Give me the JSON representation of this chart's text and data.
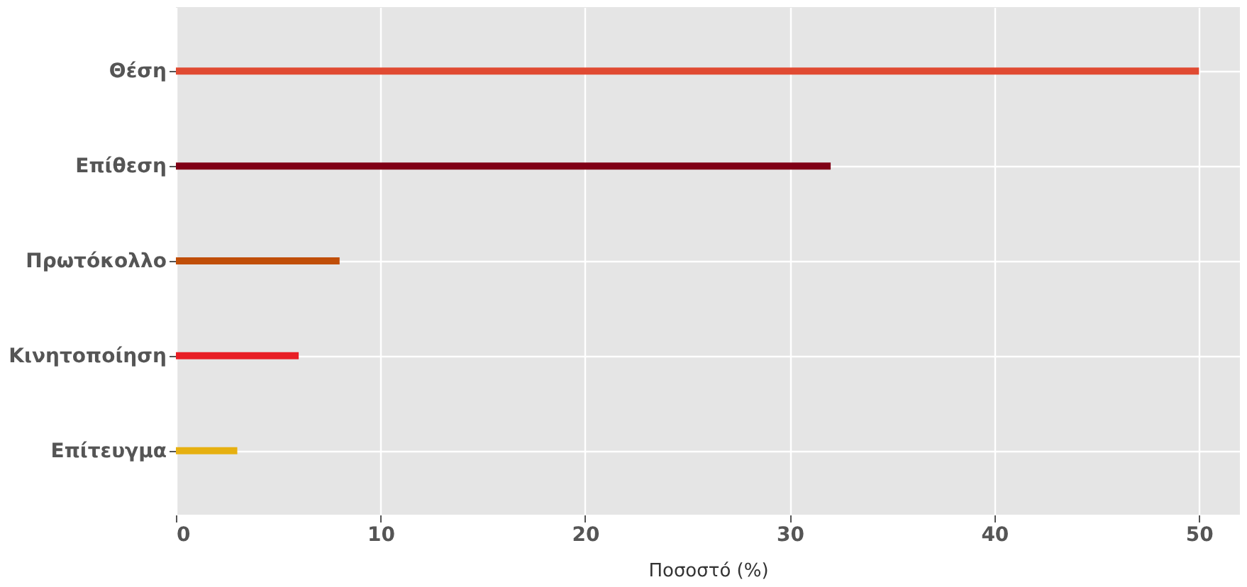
{
  "chart_data": {
    "type": "bar",
    "orientation": "horizontal",
    "categories": [
      "Θέση",
      "Επίθεση",
      "Πρωτόκολλο",
      "Κινητοποίηση",
      "Επίτευγμα"
    ],
    "values": [
      50,
      32,
      8,
      6,
      3
    ],
    "colors": [
      "#e04a32",
      "#800016",
      "#c04e08",
      "#e81e25",
      "#e6b010"
    ],
    "xlabel": "Ποσοστό (%)",
    "xlim": [
      0,
      52
    ],
    "xticks": [
      0,
      10,
      20,
      30,
      40,
      50
    ],
    "grid": true
  }
}
